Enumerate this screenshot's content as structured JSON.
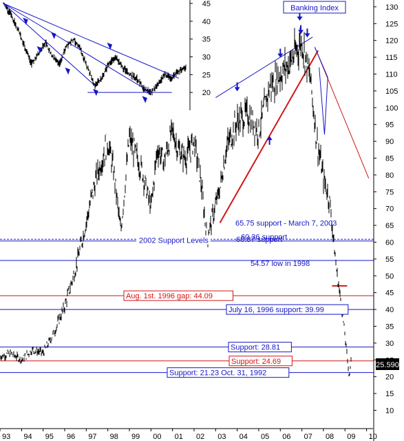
{
  "chart_data": [
    {
      "type": "line",
      "title": "Banking Index",
      "title_color": "#1515c8",
      "xlabel": "",
      "ylabel": "",
      "ylim": [
        6,
        131
      ],
      "y_ticks": [
        10,
        15,
        20,
        25,
        30,
        35,
        40,
        45,
        50,
        55,
        60,
        65,
        70,
        75,
        80,
        85,
        90,
        95,
        100,
        105,
        110,
        115,
        120,
        125,
        130
      ],
      "x_ticks": [
        "93",
        "94",
        "95",
        "96",
        "97",
        "98",
        "99",
        "00",
        "01",
        "02",
        "03",
        "04",
        "05",
        "06",
        "07",
        "08",
        "09",
        "10"
      ],
      "grid": false,
      "last_value_badge": "25.590",
      "series": [
        {
          "values_description": "price",
          "x": [
            1993.0,
            1993.5,
            1994.0,
            1994.5,
            1995.0,
            1995.5,
            1996.0,
            1996.5,
            1997.0,
            1997.3,
            1997.6,
            1998.0,
            1998.3,
            1998.6,
            1999.0,
            1999.3,
            1999.6,
            2000.0,
            2000.3,
            2000.6,
            2001.0,
            2001.3,
            2001.6,
            2002.0,
            2002.3,
            2002.6,
            2003.2,
            2003.5,
            2004.0,
            2004.5,
            2005.0,
            2005.5,
            2006.0,
            2006.5,
            2007.0,
            2007.4,
            2007.7,
            2008.0,
            2008.3,
            2008.6,
            2008.9,
            2009.1,
            2009.2,
            2009.3
          ],
          "y": [
            26,
            27,
            25,
            28,
            27,
            33,
            41,
            52,
            66,
            75,
            82,
            90,
            80,
            63,
            91,
            86,
            81,
            70,
            88,
            84,
            93,
            87,
            85,
            90,
            79,
            61,
            76,
            88,
            96,
            98,
            93,
            106,
            110,
            114,
            120,
            108,
            90,
            79,
            72,
            52,
            38,
            26,
            20,
            25.59
          ]
        }
      ],
      "support_lines": [
        {
          "value": 60.87,
          "label": "60.87 support",
          "color": "#1515c8",
          "style": "dashed"
        },
        {
          "value": 60.36,
          "label": "60.36 support",
          "color": "#1515c8",
          "style": "solid"
        },
        {
          "value": 54.57,
          "label": "54.57 low in 1998",
          "color": "#1515c8",
          "style": "solid"
        },
        {
          "value": 44.09,
          "label": "Aug. 1st. 1996 gap: 44.09",
          "color": "#d01515",
          "style": "solid"
        },
        {
          "value": 39.99,
          "label": "July 16, 1996 support: 39.99",
          "color": "#1515c8",
          "style": "solid"
        },
        {
          "value": 28.81,
          "label": "Support: 28.81",
          "color": "#1515c8",
          "style": "solid"
        },
        {
          "value": 24.69,
          "label": "Support: 24.69",
          "color": "#d01515",
          "style": "solid"
        },
        {
          "value": 21.23,
          "label": "Support: 21.23 Oct. 31, 1992",
          "color": "#1515c8",
          "style": "solid"
        }
      ],
      "annotations": [
        {
          "text": "65.75 support - March 7, 2003",
          "color": "#1515c8"
        },
        {
          "text": "2002 Support Levels",
          "color": "#1515c8"
        }
      ]
    },
    {
      "type": "line",
      "title": "",
      "ylim": [
        15,
        45
      ],
      "y_ticks": [
        20,
        25,
        30,
        35,
        40,
        45
      ],
      "series": [
        {
          "x": [
            0,
            1,
            2,
            3,
            4,
            5,
            6,
            7,
            8,
            9,
            10,
            11,
            12,
            13,
            14,
            15,
            16,
            17,
            18,
            19,
            20,
            21,
            22,
            23,
            24,
            25,
            26
          ],
          "y": [
            45,
            42,
            38,
            33,
            28,
            31,
            34,
            30,
            28,
            33,
            35,
            32,
            27,
            22,
            24,
            28,
            30,
            27,
            25,
            24,
            21,
            20,
            22,
            25,
            24,
            26,
            27
          ]
        }
      ]
    }
  ]
}
